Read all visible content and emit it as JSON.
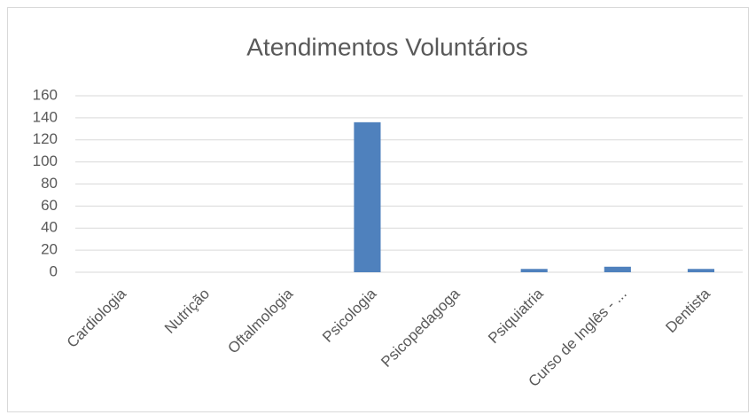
{
  "chart_data": {
    "type": "bar",
    "title": "Atendimentos Voluntários",
    "categories": [
      "Cardiologia",
      "Nutrição",
      "Oftalmologia",
      "Psicologia",
      "Psicopedagoga",
      "Psiquiatria",
      "Curso de Inglês - ...",
      "Dentista"
    ],
    "values": [
      0,
      0,
      0,
      136,
      0,
      3,
      5,
      3
    ],
    "color": "#4f81bd",
    "ylim": [
      0,
      160
    ],
    "yticks": [
      0,
      20,
      40,
      60,
      80,
      100,
      120,
      140,
      160
    ],
    "grid": true
  }
}
